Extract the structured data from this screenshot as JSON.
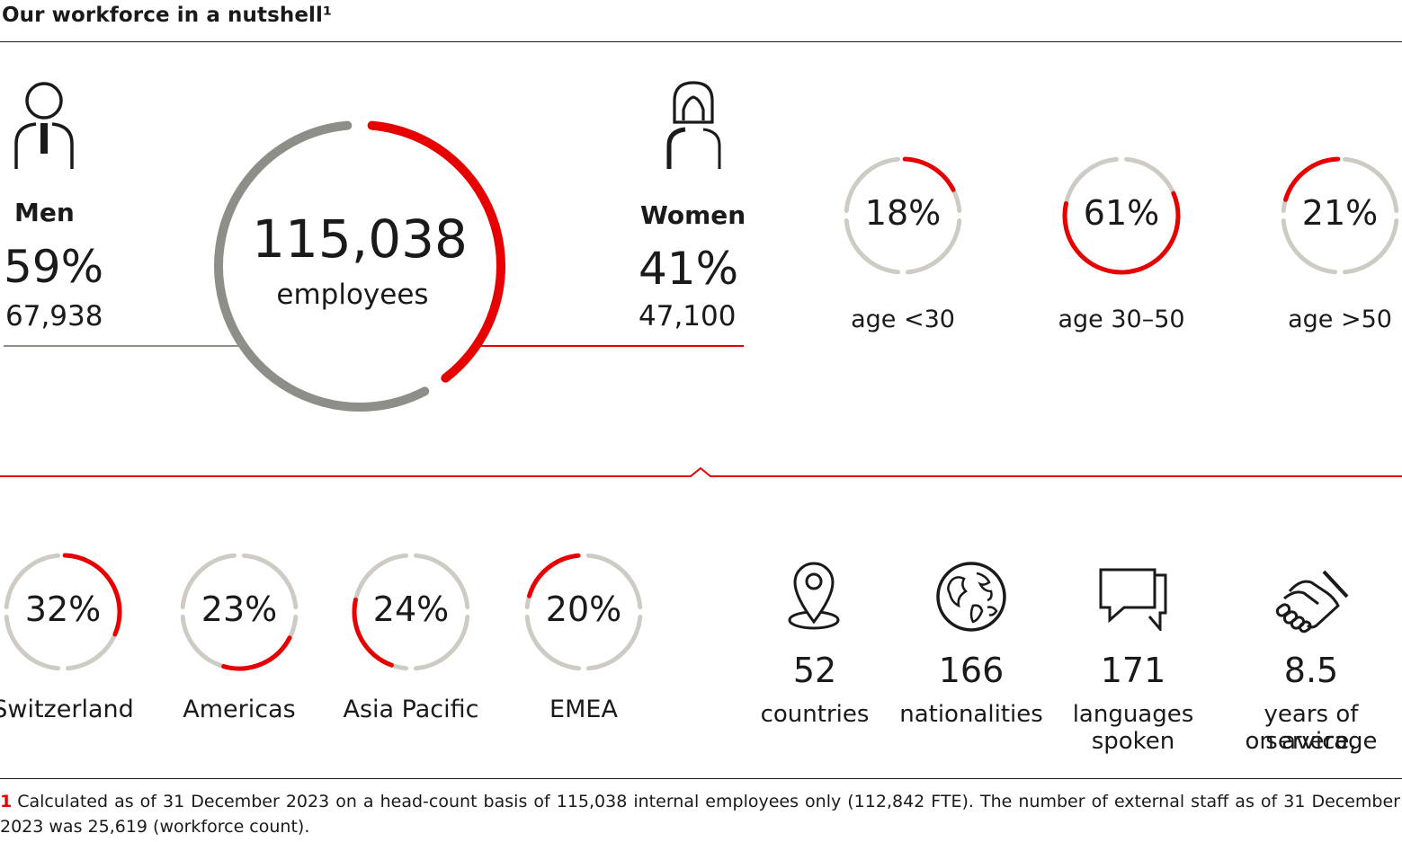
{
  "title": "Our workforce in a nutshell¹",
  "total": {
    "value": "115,038",
    "label": "employees"
  },
  "men": {
    "label": "Men",
    "percent": "59%",
    "count": "67,938",
    "share": 59
  },
  "women": {
    "label": "Women",
    "percent": "41%",
    "count": "47,100",
    "share": 41
  },
  "chart_data": [
    {
      "type": "donut",
      "name": "gender",
      "slices": [
        {
          "label": "Men",
          "value": 59,
          "color": "#8e8e88"
        },
        {
          "label": "Women",
          "value": 41,
          "color": "#e60000"
        }
      ]
    },
    {
      "type": "donut",
      "name": "age",
      "rings": [
        {
          "label": "age <30",
          "value": 18,
          "display": "18%",
          "start": 0
        },
        {
          "label": "age 30–50",
          "value": 61,
          "display": "61%",
          "start": 18
        },
        {
          "label": "age >50",
          "value": 21,
          "display": "21%",
          "start": 79
        }
      ]
    },
    {
      "type": "donut",
      "name": "region",
      "rings": [
        {
          "label": "Switzerland",
          "value": 32,
          "display": "32%",
          "start": 0
        },
        {
          "label": "Americas",
          "value": 23,
          "display": "23%",
          "start": 32
        },
        {
          "label": "Asia Pacific",
          "value": 24,
          "display": "24%",
          "start": 55
        },
        {
          "label": "EMEA",
          "value": 20,
          "display": "20%",
          "start": 79
        }
      ]
    }
  ],
  "stats": [
    {
      "value": "52",
      "label1": "countries",
      "label2": "",
      "icon": "location-pin-icon"
    },
    {
      "value": "166",
      "label1": "nationalities",
      "label2": "",
      "icon": "globe-icon"
    },
    {
      "value": "171",
      "label1": "languages",
      "label2": "spoken",
      "icon": "speech-bubbles-icon"
    },
    {
      "value": "8.5",
      "label1": "years of service,",
      "label2": "on average",
      "icon": "handshake-icon"
    }
  ],
  "colors": {
    "accent": "#e60000",
    "men": "#8e8e88",
    "ring_track": "#cdcbc3",
    "text": "#1a1a1a"
  },
  "footnote": {
    "marker": "1",
    "text": "Calculated as of 31 December 2023 on a head-count basis of 115,038 internal employees only (112,842 FTE). The number of external staff as of 31 December 2023 was 25,619 (workforce count)."
  }
}
